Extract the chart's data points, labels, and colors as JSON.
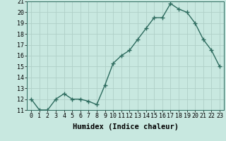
{
  "x": [
    0,
    1,
    2,
    3,
    4,
    5,
    6,
    7,
    8,
    9,
    10,
    11,
    12,
    13,
    14,
    15,
    16,
    17,
    18,
    19,
    20,
    21,
    22,
    23
  ],
  "y": [
    12,
    11,
    11,
    12,
    12.5,
    12,
    12,
    11.8,
    11.5,
    13.3,
    15.3,
    16.0,
    16.5,
    17.5,
    18.5,
    19.5,
    19.5,
    20.8,
    20.3,
    20.0,
    19.0,
    17.5,
    16.5,
    15.0
  ],
  "line_color": "#2d6b5e",
  "marker": "+",
  "marker_size": 4,
  "bg_color": "#c8e8e0",
  "grid_color": "#b0d0c8",
  "xlabel": "Humidex (Indice chaleur)",
  "xlim": [
    -0.5,
    23.5
  ],
  "ylim": [
    11,
    21
  ],
  "yticks": [
    11,
    12,
    13,
    14,
    15,
    16,
    17,
    18,
    19,
    20,
    21
  ],
  "xticks": [
    0,
    1,
    2,
    3,
    4,
    5,
    6,
    7,
    8,
    9,
    10,
    11,
    12,
    13,
    14,
    15,
    16,
    17,
    18,
    19,
    20,
    21,
    22,
    23
  ],
  "xlabel_fontsize": 7.5,
  "tick_fontsize": 6,
  "line_width": 1.0,
  "marker_edge_width": 1.0
}
